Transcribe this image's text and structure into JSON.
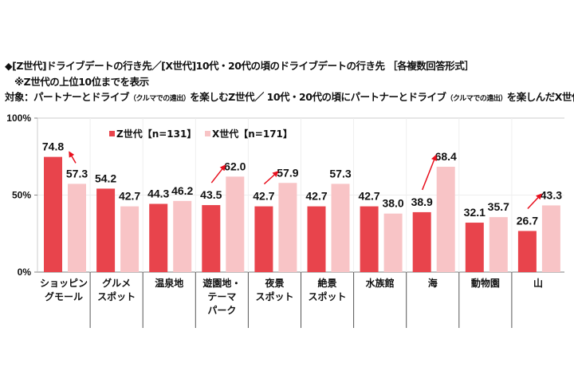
{
  "header": {
    "title": "◆[Z世代]ドライブデートの行き先／[X世代]10代・20代の頃のドライブデートの行き先 ［各複数回答形式］",
    "note": "※Z世代の上位10位までを表示",
    "target_prefix": "対象：パートナーとドライブ",
    "target_small1": "（クルマでの遠出）",
    "target_mid": "を楽しむZ世代／ 10代・20代の頃にパートナーとドライブ",
    "target_small2": "（クルマでの遠出）",
    "target_suffix": "を楽しんだX世代"
  },
  "chart_data": {
    "type": "bar",
    "categories": [
      [
        "ショッピン",
        "グモール"
      ],
      [
        "グルメ",
        "スポット"
      ],
      [
        "温泉地"
      ],
      [
        "遊園地・",
        "テーマ",
        "パーク"
      ],
      [
        "夜景",
        "スポット"
      ],
      [
        "絶景",
        "スポット"
      ],
      [
        "水族館"
      ],
      [
        "海"
      ],
      [
        "動物園"
      ],
      [
        "山"
      ]
    ],
    "series": [
      {
        "name": "Z世代【n=131】",
        "color": "#e8444c",
        "values": [
          74.8,
          54.2,
          44.3,
          43.5,
          42.7,
          42.7,
          42.7,
          38.9,
          32.1,
          26.7
        ]
      },
      {
        "name": "X世代【n=171】",
        "color": "#f8c4c6",
        "values": [
          57.3,
          42.7,
          46.2,
          62.0,
          57.9,
          57.3,
          38.0,
          68.4,
          35.7,
          43.3
        ]
      }
    ],
    "ylim": [
      0,
      100
    ],
    "yticks": [
      "0%",
      "50%",
      "100%"
    ],
    "legend": "top",
    "arrows_on_categories": [
      0,
      3,
      4,
      7,
      9
    ],
    "arrow_color": "#e8101e"
  }
}
